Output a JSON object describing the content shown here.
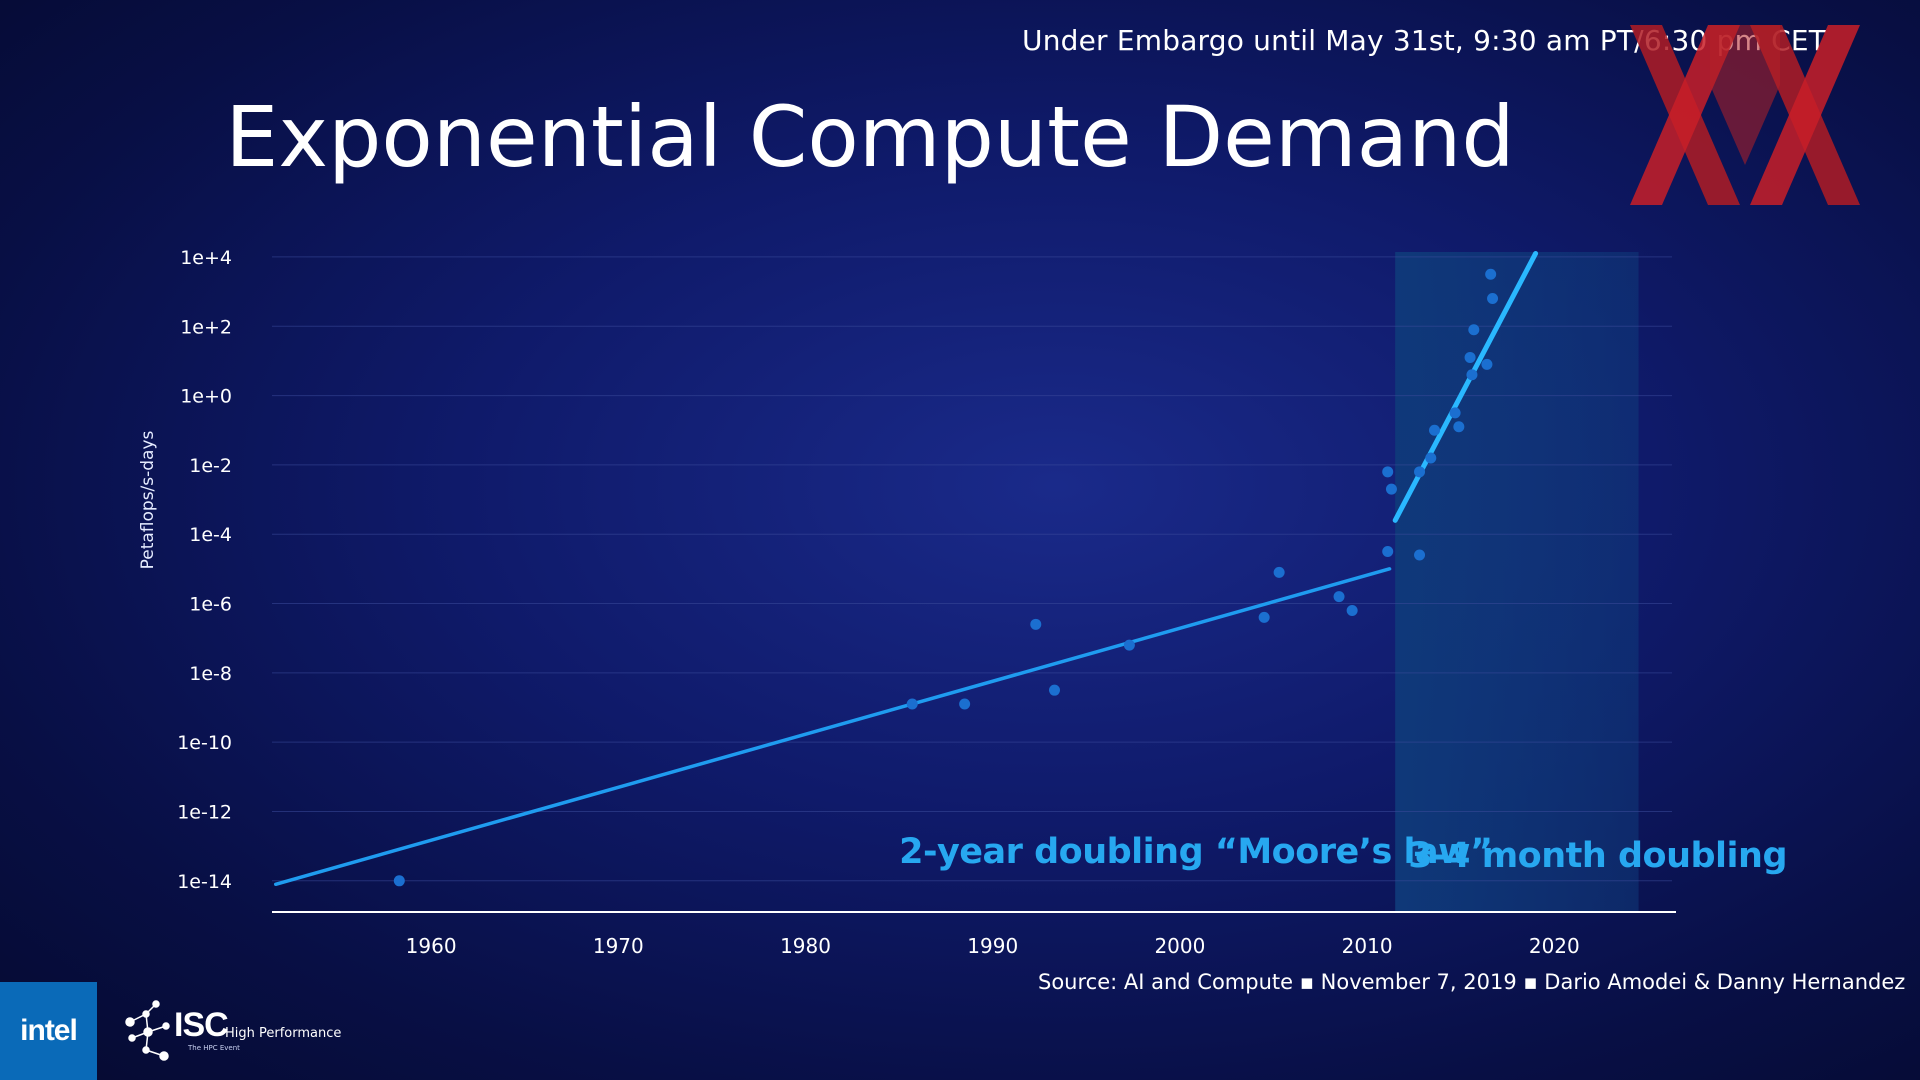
{
  "embargo": "Under Embargo until May 31st, 9:30 am PT/6:30 pm CET",
  "title": "Exponential Compute Demand",
  "source": "Source: AI and Compute ▪ November 7, 2019 ▪ Dario Amodei & Danny Hernandez",
  "logos": {
    "intel": "intel",
    "isc": "ISC",
    "isc_sub": "High Performance",
    "isc_tag": "The HPC Event"
  },
  "colors": {
    "accent": "#27a8f0",
    "trend": "#1f9cf0",
    "points": "#1b6fd0",
    "logo_red": "#c81e28"
  },
  "chart_data": {
    "type": "scatter",
    "title": "Exponential Compute Demand",
    "ylabel": "Petaflops/s-days",
    "xlabel": "",
    "y_scale": "log",
    "x_ticks": [
      1960,
      1970,
      1980,
      1990,
      2000,
      2010,
      2020
    ],
    "y_ticks": [
      {
        "exp": 4,
        "label": "1e+4"
      },
      {
        "exp": 2,
        "label": "1e+2"
      },
      {
        "exp": 0,
        "label": "1e+0"
      },
      {
        "exp": -2,
        "label": "1e-2"
      },
      {
        "exp": -4,
        "label": "1e-4"
      },
      {
        "exp": -6,
        "label": "1e-6"
      },
      {
        "exp": -8,
        "label": "1e-8"
      },
      {
        "exp": -10,
        "label": "1e-10"
      },
      {
        "exp": -12,
        "label": "1e-12"
      },
      {
        "exp": -14,
        "label": "1e-14"
      }
    ],
    "xlim": [
      1951.5,
      2026.5
    ],
    "ylim_exp": [
      -14.9,
      4.2
    ],
    "grid": true,
    "points": [
      {
        "year": 1958.3,
        "exp": -14.0
      },
      {
        "year": 1985.7,
        "exp": -8.9
      },
      {
        "year": 1988.5,
        "exp": -8.9
      },
      {
        "year": 1992.3,
        "exp": -6.6
      },
      {
        "year": 1993.3,
        "exp": -8.5
      },
      {
        "year": 1997.3,
        "exp": -7.2
      },
      {
        "year": 2004.5,
        "exp": -6.4
      },
      {
        "year": 2005.3,
        "exp": -5.1
      },
      {
        "year": 2008.5,
        "exp": -5.8
      },
      {
        "year": 2009.2,
        "exp": -6.2
      },
      {
        "year": 2011.1,
        "exp": -4.5
      },
      {
        "year": 2011.1,
        "exp": -2.2
      },
      {
        "year": 2011.3,
        "exp": -2.7
      },
      {
        "year": 2012.8,
        "exp": -4.6
      },
      {
        "year": 2012.8,
        "exp": -2.2
      },
      {
        "year": 2013.4,
        "exp": -1.8
      },
      {
        "year": 2013.6,
        "exp": -1.0
      },
      {
        "year": 2014.7,
        "exp": -0.5
      },
      {
        "year": 2014.9,
        "exp": -0.9
      },
      {
        "year": 2015.5,
        "exp": 1.1
      },
      {
        "year": 2015.6,
        "exp": 0.6
      },
      {
        "year": 2015.7,
        "exp": 1.9
      },
      {
        "year": 2016.4,
        "exp": 0.9
      },
      {
        "year": 2016.6,
        "exp": 3.5
      },
      {
        "year": 2016.7,
        "exp": 2.8
      }
    ],
    "trend_lines": [
      {
        "name": "2-year doubling “Moore’s law”",
        "from": {
          "year": 1951.7,
          "exp": -14.1
        },
        "to": {
          "year": 2011.2,
          "exp": -5.0
        }
      },
      {
        "name": "3-4 month doubling",
        "from": {
          "year": 2011.5,
          "exp": -3.6
        },
        "to": {
          "year": 2019.0,
          "exp": 4.1
        }
      }
    ],
    "shaded_region": {
      "from_year": 2011.5,
      "to_year": 2024.5
    }
  }
}
